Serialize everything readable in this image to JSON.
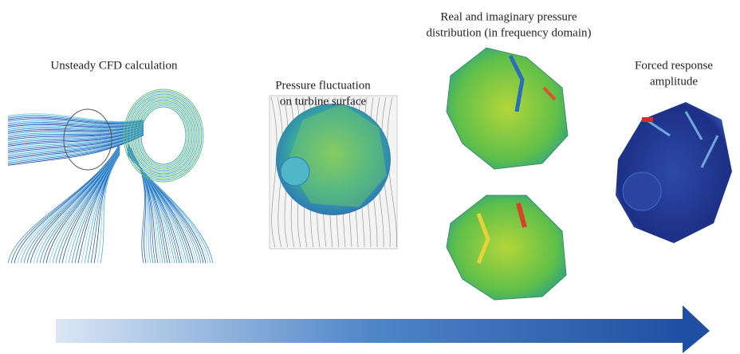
{
  "stages": [
    {
      "label_lines": [
        "Unsteady CFD calculation"
      ]
    },
    {
      "label_lines": [
        "Pressure fluctuation",
        "on turbine surface"
      ]
    },
    {
      "label_lines": [
        "Real and imaginary pressure",
        "distribution (in frequency domain)"
      ]
    },
    {
      "label_lines": [
        "Forced response",
        "amplitude"
      ]
    }
  ]
}
